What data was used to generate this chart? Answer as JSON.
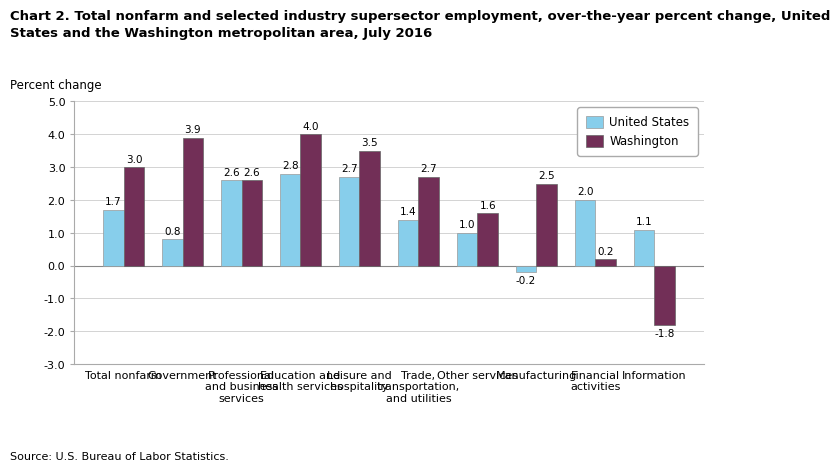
{
  "title_line1": "Chart 2. Total nonfarm and selected industry supersector employment, over-the-year percent change, United",
  "title_line2": "States and the Washington metropolitan area, July 2016",
  "ylabel": "Percent change",
  "source": "Source: U.S. Bureau of Labor Statistics.",
  "categories": [
    "Total nonfarm",
    "Government",
    "Professional\nand business\nservices",
    "Education and\nhealth services",
    "Leisure and\nhospitality",
    "Trade,\ntransportation,\nand utilities",
    "Other services",
    "Manufacturing",
    "Financial\nactivities",
    "Information"
  ],
  "us_values": [
    1.7,
    0.8,
    2.6,
    2.8,
    2.7,
    1.4,
    1.0,
    -0.2,
    2.0,
    1.1
  ],
  "wash_values": [
    3.0,
    3.9,
    2.6,
    4.0,
    3.5,
    2.7,
    1.6,
    2.5,
    0.2,
    -1.8
  ],
  "us_color": "#87CEEB",
  "wash_color": "#722F57",
  "ylim": [
    -3.0,
    5.0
  ],
  "yticks": [
    -3.0,
    -2.0,
    -1.0,
    0.0,
    1.0,
    2.0,
    3.0,
    4.0,
    5.0
  ],
  "legend_us": "United States",
  "legend_wash": "Washington",
  "bar_width": 0.35,
  "title_fontsize": 9.5,
  "axis_fontsize": 8.5,
  "tick_fontsize": 8,
  "label_fontsize": 7.5,
  "source_fontsize": 8
}
